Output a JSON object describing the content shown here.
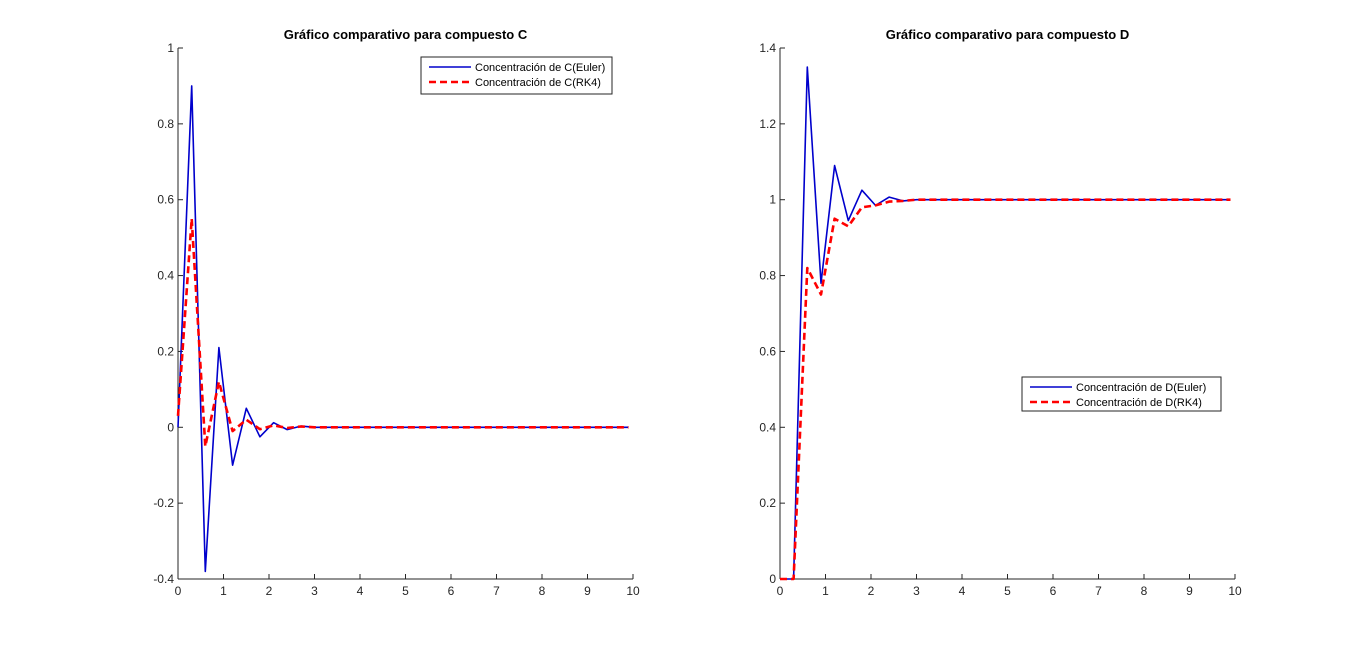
{
  "chart_data": [
    {
      "type": "line",
      "title": "Gráfico comparativo para compuesto C",
      "xlabel": "",
      "ylabel": "",
      "xlim": [
        0,
        10
      ],
      "ylim": [
        -0.4,
        1
      ],
      "xticks": [
        0,
        1,
        2,
        3,
        4,
        5,
        6,
        7,
        8,
        9,
        10
      ],
      "yticks": [
        -0.4,
        -0.2,
        0,
        0.2,
        0.4,
        0.6,
        0.8,
        1
      ],
      "ytick_labels": [
        "-0.4",
        "-0.2",
        "0",
        "0.2",
        "0.4",
        "0.6",
        "0.8",
        "1"
      ],
      "grid": false,
      "legend_placement": "top-right",
      "x": [
        0,
        0.3,
        0.6,
        0.9,
        1.2,
        1.5,
        1.8,
        2.1,
        2.4,
        2.7,
        3.0,
        3.3,
        3.6,
        3.9,
        4.2,
        4.5,
        4.8,
        5.1,
        5.4,
        5.7,
        6.0,
        6.3,
        6.6,
        6.9,
        7.2,
        7.5,
        7.8,
        8.1,
        8.4,
        8.7,
        9.0,
        9.3,
        9.6,
        9.9
      ],
      "series": [
        {
          "name": "Concentración de C(Euler)",
          "color": "#0000cc",
          "style": "solid",
          "values": [
            0,
            0.9,
            -0.38,
            0.21,
            -0.1,
            0.05,
            -0.025,
            0.012,
            -0.006,
            0.003,
            0,
            0,
            0,
            0,
            0,
            0,
            0,
            0,
            0,
            0,
            0,
            0,
            0,
            0,
            0,
            0,
            0,
            0,
            0,
            0,
            0,
            0,
            0,
            0
          ]
        },
        {
          "name": "Concentración de C(RK4)",
          "color": "#ff0000",
          "style": "dashed",
          "values": [
            0.03,
            0.55,
            -0.05,
            0.12,
            -0.01,
            0.02,
            -0.005,
            0.005,
            -0.002,
            0.002,
            0,
            0,
            0,
            0,
            0,
            0,
            0,
            0,
            0,
            0,
            0,
            0,
            0,
            0,
            0,
            0,
            0,
            0,
            0,
            0,
            0,
            0,
            0,
            0
          ]
        }
      ]
    },
    {
      "type": "line",
      "title": "Gráfico comparativo para compuesto D",
      "xlabel": "",
      "ylabel": "",
      "xlim": [
        0,
        10
      ],
      "ylim": [
        0,
        1.4
      ],
      "xticks": [
        0,
        1,
        2,
        3,
        4,
        5,
        6,
        7,
        8,
        9,
        10
      ],
      "yticks": [
        0,
        0.2,
        0.4,
        0.6,
        0.8,
        1,
        1.2,
        1.4
      ],
      "ytick_labels": [
        "0",
        "0.2",
        "0.4",
        "0.6",
        "0.8",
        "1",
        "1.2",
        "1.4"
      ],
      "grid": false,
      "legend_placement": "center-right",
      "x": [
        0,
        0.3,
        0.6,
        0.9,
        1.2,
        1.5,
        1.8,
        2.1,
        2.4,
        2.7,
        3.0,
        3.3,
        3.6,
        3.9,
        4.2,
        4.5,
        4.8,
        5.1,
        5.4,
        5.7,
        6.0,
        6.3,
        6.6,
        6.9,
        7.2,
        7.5,
        7.8,
        8.1,
        8.4,
        8.7,
        9.0,
        9.3,
        9.6,
        9.9
      ],
      "series": [
        {
          "name": "Concentración de D(Euler)",
          "color": "#0000cc",
          "style": "solid",
          "values": [
            0,
            0,
            1.35,
            0.78,
            1.09,
            0.945,
            1.025,
            0.985,
            1.007,
            0.997,
            1,
            1,
            1,
            1,
            1,
            1,
            1,
            1,
            1,
            1,
            1,
            1,
            1,
            1,
            1,
            1,
            1,
            1,
            1,
            1,
            1,
            1,
            1,
            1
          ]
        },
        {
          "name": "Concentración de D(RK4)",
          "color": "#ff0000",
          "style": "dashed",
          "values": [
            0,
            0,
            0.82,
            0.75,
            0.95,
            0.93,
            0.98,
            0.985,
            0.995,
            0.997,
            1,
            1,
            1,
            1,
            1,
            1,
            1,
            1,
            1,
            1,
            1,
            1,
            1,
            1,
            1,
            1,
            1,
            1,
            1,
            1,
            1,
            1,
            1,
            1
          ]
        }
      ]
    }
  ]
}
